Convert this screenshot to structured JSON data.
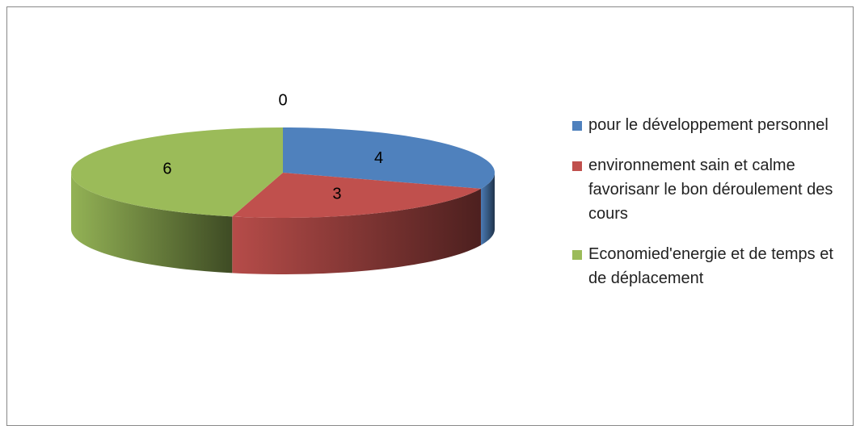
{
  "chart_data": {
    "type": "pie3d",
    "categories": [
      "pour le développement personnel",
      "environnement sain et calme favorisanr le bon déroulement des cours",
      "Economied'energie et de temps et de déplacement",
      null
    ],
    "values": [
      4,
      3,
      6,
      0
    ],
    "colors": [
      "#4f81bd",
      "#c0504d",
      "#9bbb59"
    ],
    "legend": "right"
  }
}
